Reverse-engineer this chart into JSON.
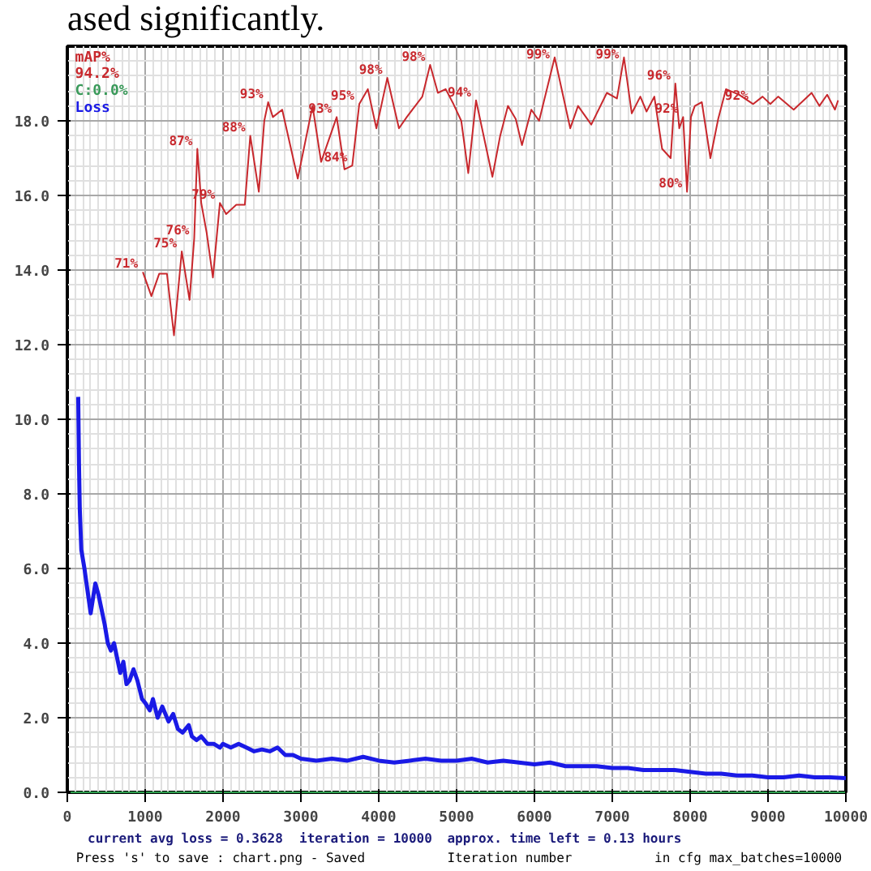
{
  "chart_data": {
    "type": "line",
    "title": "ased significantly.",
    "xlabel": "Iteration number",
    "series": [
      {
        "name": "mAP%",
        "color": "#c8282d",
        "x": [
          970,
          1080,
          1180,
          1280,
          1370,
          1470,
          1570,
          1630,
          1670,
          1720,
          1790,
          1870,
          1960,
          2040,
          2170,
          2280,
          2350,
          2460,
          2530,
          2580,
          2640,
          2760,
          2960,
          3150,
          3260,
          3460,
          3560,
          3660,
          3750,
          3860,
          3970,
          4110,
          4260,
          4360,
          4560,
          4660,
          4760,
          4860,
          4960,
          5060,
          5150,
          5250,
          5460,
          5560,
          5660,
          5760,
          5840,
          5960,
          6060,
          6260,
          6460,
          6560,
          6730,
          6930,
          7060,
          7150,
          7250,
          7360,
          7440,
          7540,
          7640,
          7750,
          7810,
          7860,
          7910,
          7960,
          8010,
          8060,
          8150,
          8260,
          8360,
          8460,
          8630,
          8810,
          8930,
          9030,
          9130,
          9330,
          9560,
          9660,
          9760,
          9860,
          9900
        ],
        "values": [
          13.95,
          13.3,
          13.9,
          13.9,
          12.25,
          14.5,
          13.2,
          14.85,
          17.25,
          15.8,
          15.0,
          13.8,
          15.8,
          15.5,
          15.75,
          15.75,
          17.6,
          16.1,
          18.0,
          18.5,
          18.1,
          18.3,
          16.45,
          18.4,
          16.9,
          18.1,
          16.7,
          16.8,
          18.45,
          18.85,
          17.8,
          19.15,
          17.8,
          18.1,
          18.65,
          19.5,
          18.75,
          18.85,
          18.45,
          18.0,
          16.6,
          18.55,
          16.5,
          17.6,
          18.4,
          18.05,
          17.35,
          18.3,
          18.0,
          19.7,
          17.8,
          18.4,
          17.9,
          18.75,
          18.6,
          19.7,
          18.2,
          18.65,
          18.25,
          18.65,
          17.25,
          17.0,
          19.0,
          17.8,
          18.1,
          16.1,
          18.1,
          18.4,
          18.5,
          17.0,
          18.05,
          18.85,
          18.7,
          18.45,
          18.65,
          18.45,
          18.65,
          18.3,
          18.75,
          18.4,
          18.7,
          18.3,
          18.55
        ]
      },
      {
        "name": "Loss",
        "color": "#1a1ae6",
        "x": [
          140,
          150,
          160,
          180,
          220,
          260,
          300,
          360,
          400,
          440,
          480,
          520,
          560,
          600,
          640,
          680,
          720,
          760,
          800,
          850,
          900,
          960,
          1000,
          1060,
          1100,
          1160,
          1220,
          1300,
          1360,
          1420,
          1480,
          1560,
          1600,
          1660,
          1720,
          1800,
          1880,
          1960,
          2000,
          2100,
          2200,
          2300,
          2400,
          2500,
          2600,
          2700,
          2800,
          2900,
          3000,
          3200,
          3400,
          3600,
          3800,
          4000,
          4200,
          4400,
          4600,
          4800,
          5000,
          5200,
          5400,
          5600,
          5800,
          6000,
          6200,
          6400,
          6600,
          6800,
          7000,
          7200,
          7400,
          7600,
          7800,
          8000,
          8200,
          8400,
          8600,
          8800,
          9000,
          9200,
          9400,
          9600,
          9800,
          10000
        ],
        "values": [
          10.6,
          8.8,
          7.6,
          6.5,
          6.0,
          5.4,
          4.8,
          5.6,
          5.3,
          4.9,
          4.5,
          4.0,
          3.8,
          4.0,
          3.6,
          3.2,
          3.5,
          2.9,
          3.0,
          3.3,
          3.0,
          2.5,
          2.4,
          2.2,
          2.5,
          2.0,
          2.3,
          1.9,
          2.1,
          1.7,
          1.6,
          1.8,
          1.5,
          1.4,
          1.5,
          1.3,
          1.3,
          1.2,
          1.3,
          1.2,
          1.3,
          1.2,
          1.1,
          1.15,
          1.1,
          1.2,
          1.0,
          1.0,
          0.9,
          0.85,
          0.9,
          0.85,
          0.95,
          0.85,
          0.8,
          0.85,
          0.9,
          0.85,
          0.85,
          0.9,
          0.8,
          0.85,
          0.8,
          0.75,
          0.8,
          0.7,
          0.7,
          0.7,
          0.65,
          0.65,
          0.6,
          0.6,
          0.6,
          0.55,
          0.5,
          0.5,
          0.45,
          0.45,
          0.4,
          0.4,
          0.45,
          0.4,
          0.4,
          0.38
        ]
      }
    ],
    "annotations": [
      "94.2%",
      "C:0.0%",
      "current avg loss = 0.3628",
      "iteration = 10000",
      "approx. time left = 0.13 hours",
      "Press 's' to save : chart.png - Saved",
      "in cfg max_batches=10000",
      {
        "text": "71%",
        "x": 970,
        "y": 13.95
      },
      {
        "text": "75%",
        "x": 1470,
        "y": 14.5
      },
      {
        "text": "76%",
        "x": 1630,
        "y": 14.85
      },
      {
        "text": "87%",
        "x": 1670,
        "y": 17.25
      },
      {
        "text": "79%",
        "x": 1960,
        "y": 15.8
      },
      {
        "text": "88%",
        "x": 2350,
        "y": 17.6
      },
      {
        "text": "93%",
        "x": 2580,
        "y": 18.5
      },
      {
        "text": "84%",
        "x": 3660,
        "y": 16.8
      },
      {
        "text": "93%",
        "x": 3460,
        "y": 18.1
      },
      {
        "text": "95%",
        "x": 3750,
        "y": 18.45
      },
      {
        "text": "98%",
        "x": 4110,
        "y": 19.15
      },
      {
        "text": "98%",
        "x": 4660,
        "y": 19.5
      },
      {
        "text": "94%",
        "x": 5250,
        "y": 18.55
      },
      {
        "text": "99%",
        "x": 6260,
        "y": 19.7
      },
      {
        "text": "99%",
        "x": 7150,
        "y": 19.7
      },
      {
        "text": "96%",
        "x": 7810,
        "y": 19.0
      },
      {
        "text": "92%",
        "x": 7910,
        "y": 18.1
      },
      {
        "text": "80%",
        "x": 7960,
        "y": 16.1
      },
      {
        "text": "92%",
        "x": 8810,
        "y": 18.45
      }
    ],
    "xlim": [
      0,
      10000
    ],
    "ylim": [
      0,
      20
    ],
    "xticks": [
      0,
      1000,
      2000,
      3000,
      4000,
      5000,
      6000,
      7000,
      8000,
      9000,
      10000
    ],
    "yticks": [
      {
        "value": 0,
        "label": "0.0"
      },
      {
        "value": 2,
        "label": "2.0"
      },
      {
        "value": 4,
        "label": "4.0"
      },
      {
        "value": 6,
        "label": "6.0"
      },
      {
        "value": 8,
        "label": "8.0"
      },
      {
        "value": 10,
        "label": "10.0"
      },
      {
        "value": 12,
        "label": "12.0"
      },
      {
        "value": 14,
        "label": "14.0"
      },
      {
        "value": 16,
        "label": "16.0"
      },
      {
        "value": 18,
        "label": "18.0"
      }
    ],
    "grid": true,
    "legend": "top left"
  }
}
